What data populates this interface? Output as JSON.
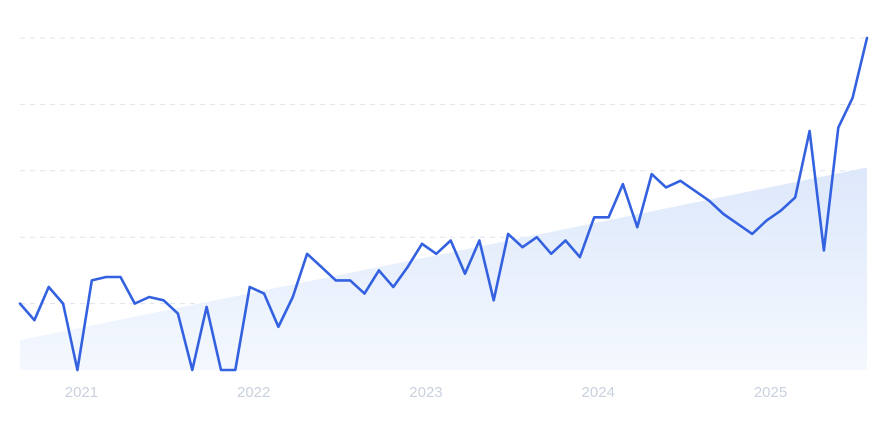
{
  "chart_data": {
    "type": "line",
    "title": "",
    "xlabel": "",
    "ylabel": "",
    "x_ticks": [
      "2021",
      "2022",
      "2023",
      "2024",
      "2025"
    ],
    "x_tick_dates": [
      "2021-01-01",
      "2022-01-01",
      "2023-01-01",
      "2024-01-01",
      "2025-01-01"
    ],
    "xlim": [
      "2020-09-01",
      "2025-08-01"
    ],
    "ylim": [
      0,
      100
    ],
    "y_gridlines": [
      20,
      40,
      60,
      80,
      100
    ],
    "grid": true,
    "legend": "none",
    "colors": {
      "line": "#3361e0",
      "area_top": "#dde8fb",
      "area_bottom": "#f4f8fe",
      "grid": "#dfe3eb",
      "tick_text": "#c9d1de"
    },
    "series": [
      {
        "type": "line",
        "x": [
          "2020-09",
          "2020-10",
          "2020-11",
          "2020-12",
          "2021-01",
          "2021-02",
          "2021-03",
          "2021-04",
          "2021-05",
          "2021-06",
          "2021-07",
          "2021-08",
          "2021-09",
          "2021-10",
          "2021-11",
          "2021-12",
          "2022-01",
          "2022-02",
          "2022-03",
          "2022-04",
          "2022-05",
          "2022-06",
          "2022-07",
          "2022-08",
          "2022-09",
          "2022-10",
          "2022-11",
          "2022-12",
          "2023-01",
          "2023-02",
          "2023-03",
          "2023-04",
          "2023-05",
          "2023-06",
          "2023-07",
          "2023-08",
          "2023-09",
          "2023-10",
          "2023-11",
          "2023-12",
          "2024-01",
          "2024-02",
          "2024-03",
          "2024-04",
          "2024-05",
          "2024-06",
          "2024-07",
          "2024-08",
          "2024-09",
          "2024-10",
          "2024-11",
          "2024-12",
          "2025-01",
          "2025-02",
          "2025-03",
          "2025-04",
          "2025-05",
          "2025-06",
          "2025-07",
          "2025-08"
        ],
        "y": [
          20,
          15,
          25,
          20,
          0,
          27,
          28,
          28,
          20,
          22,
          21,
          17,
          0,
          19,
          0,
          0,
          25,
          23,
          13,
          22,
          35,
          31,
          27,
          27,
          23,
          30,
          25,
          31,
          38,
          35,
          39,
          29,
          39,
          21,
          41,
          37,
          40,
          35,
          39,
          34,
          46,
          46,
          56,
          43,
          59,
          55,
          57,
          54,
          51,
          47,
          44,
          41,
          45,
          48,
          52,
          72,
          36,
          73,
          82,
          100
        ]
      },
      {
        "type": "area",
        "x": [
          "2020-09",
          "2025-08"
        ],
        "y": [
          9,
          61
        ]
      }
    ]
  }
}
